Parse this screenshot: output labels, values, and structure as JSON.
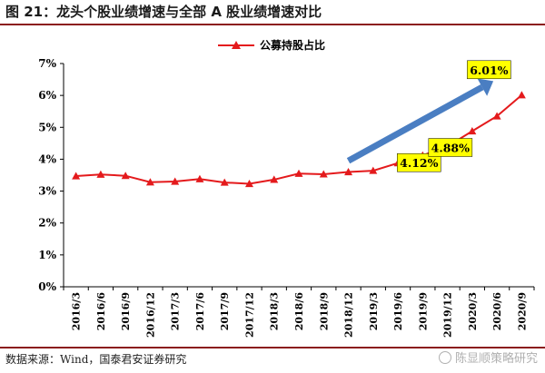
{
  "figure": {
    "title": "图 21：龙头个股业绩增速与全部 A 股业绩增速对比",
    "source": "数据来源：Wind，国泰君安证券研究",
    "watermark": "陈显顺策略研究"
  },
  "colors": {
    "series": "#e41a1c",
    "arrow": "#4a7ec2",
    "callout_bg": "#ffff00",
    "title_rule": "#8b1a1a"
  },
  "chart_data": {
    "type": "line",
    "x": [
      "2016/3",
      "2016/6",
      "2016/9",
      "2016/12",
      "2017/3",
      "2017/6",
      "2017/9",
      "2017/12",
      "2018/3",
      "2018/6",
      "2018/9",
      "2018/12",
      "2019/3",
      "2019/6",
      "2019/9",
      "2019/12",
      "2020/3",
      "2020/6",
      "2020/9"
    ],
    "series": [
      {
        "name": "公募持股占比",
        "values": [
          3.47,
          3.52,
          3.48,
          3.28,
          3.3,
          3.38,
          3.27,
          3.23,
          3.36,
          3.55,
          3.53,
          3.6,
          3.64,
          3.88,
          4.12,
          4.4,
          4.88,
          5.35,
          6.01
        ]
      }
    ],
    "y_ticks": [
      "0%",
      "1%",
      "2%",
      "3%",
      "4%",
      "5%",
      "6%",
      "7%"
    ],
    "ylim": [
      0,
      7
    ],
    "y_unit": "%",
    "grid": false,
    "legend": "top-center",
    "annotations": [
      {
        "x": "2019/9",
        "label": "4.12%"
      },
      {
        "x": "2020/3",
        "label": "4.88%"
      },
      {
        "x": "2020/9",
        "label": "6.01%"
      }
    ],
    "trend_arrow": {
      "from": "2018/12",
      "to": "2020/6",
      "direction": "up"
    }
  }
}
